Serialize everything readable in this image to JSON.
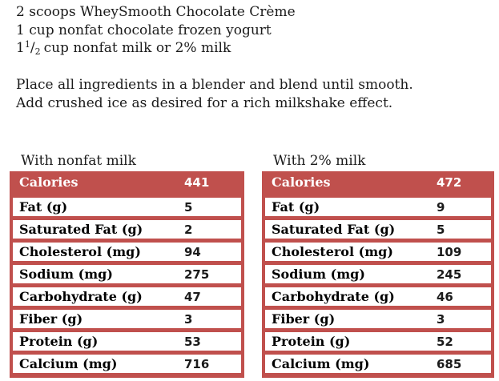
{
  "colors": {
    "accent_red": "#c0504d",
    "header_text": "#ffffff",
    "body_text": "#1b1b1b"
  },
  "recipe": {
    "ingredients_line1": "2 scoops WheySmooth Chocolate Crème",
    "ingredients_line2": "1 cup nonfat chocolate frozen yogurt",
    "ingredient3": {
      "whole": "1",
      "numerator": "1",
      "slash": "/",
      "denominator": "2",
      "rest": "cup nonfat milk or 2% milk"
    },
    "instructions_line1": "Place all ingredients in a blender and blend until smooth.",
    "instructions_line2": "Add crushed ice as desired for a rich milkshake effect."
  },
  "tables": [
    {
      "caption": "With nonfat milk",
      "header": {
        "label": "Calories",
        "value": "441"
      },
      "rows": [
        {
          "label": "Fat (g)",
          "value": "5"
        },
        {
          "label": "Saturated Fat (g)",
          "value": "2"
        },
        {
          "label": "Cholesterol (mg)",
          "value": "94"
        },
        {
          "label": "Sodium (mg)",
          "value": "275"
        },
        {
          "label": "Carbohydrate (g)",
          "value": "47"
        },
        {
          "label": "Fiber (g)",
          "value": "3"
        },
        {
          "label": "Protein (g)",
          "value": "53"
        },
        {
          "label": "Calcium (mg)",
          "value": "716"
        }
      ]
    },
    {
      "caption": "With 2% milk",
      "header": {
        "label": "Calories",
        "value": "472"
      },
      "rows": [
        {
          "label": "Fat (g)",
          "value": "9"
        },
        {
          "label": "Saturated Fat (g)",
          "value": "5"
        },
        {
          "label": "Cholesterol (mg)",
          "value": "109"
        },
        {
          "label": "Sodium (mg)",
          "value": "245"
        },
        {
          "label": "Carbohydrate (g)",
          "value": "46"
        },
        {
          "label": "Fiber (g)",
          "value": "3"
        },
        {
          "label": "Protein (g)",
          "value": "52"
        },
        {
          "label": "Calcium (mg)",
          "value": "685"
        }
      ]
    }
  ]
}
